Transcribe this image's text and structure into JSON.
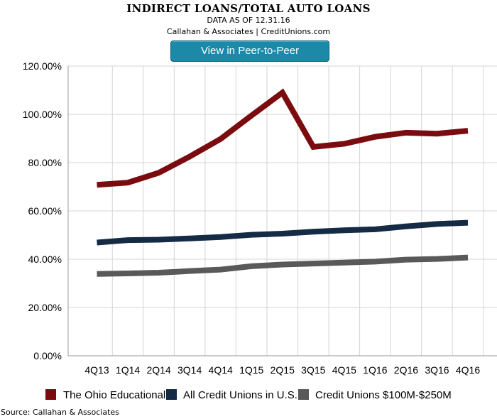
{
  "header": {
    "title": "INDIRECT LOANS/TOTAL AUTO LOANS",
    "date_line": "DATA AS OF 12.31.16",
    "credit_line": "Callahan & Associates | CreditUnions.com"
  },
  "button": {
    "label": "View in Peer-to-Peer"
  },
  "footer": {
    "source": "Source: Callahan & Associates"
  },
  "colors": {
    "grid": "#d4d4d4",
    "axis": "#9a9a9a"
  },
  "chart_data": {
    "type": "line",
    "title": "INDIRECT LOANS/TOTAL AUTO LOANS",
    "xlabel": "",
    "ylabel": "",
    "categories": [
      "4Q13",
      "1Q14",
      "2Q14",
      "3Q14",
      "4Q14",
      "1Q15",
      "2Q15",
      "3Q15",
      "4Q15",
      "1Q16",
      "2Q16",
      "3Q16",
      "4Q16"
    ],
    "ylim": [
      0,
      120
    ],
    "yticks": [
      0,
      20,
      40,
      60,
      80,
      100,
      120
    ],
    "ytick_labels": [
      "0.00%",
      "20.00%",
      "40.00%",
      "60.00%",
      "80.00%",
      "100.00%",
      "120.00%"
    ],
    "grid": true,
    "legend_position": "bottom",
    "series": [
      {
        "name": "The Ohio Educational",
        "color": "#7a0c10",
        "values": [
          70.8,
          71.7,
          75.8,
          82.5,
          89.8,
          99.5,
          109.0,
          86.5,
          87.8,
          90.7,
          92.4,
          92.0,
          93.2
        ]
      },
      {
        "name": "All Credit Unions in U.S.",
        "color": "#142a45",
        "values": [
          46.9,
          47.9,
          48.1,
          48.6,
          49.2,
          50.1,
          50.6,
          51.4,
          52.0,
          52.4,
          53.6,
          54.6,
          55.1
        ]
      },
      {
        "name": "Credit Unions $100M-$250M",
        "color": "#595959",
        "values": [
          33.9,
          34.1,
          34.4,
          35.1,
          35.7,
          37.1,
          37.8,
          38.2,
          38.6,
          39.0,
          39.8,
          40.1,
          40.7
        ]
      }
    ]
  }
}
